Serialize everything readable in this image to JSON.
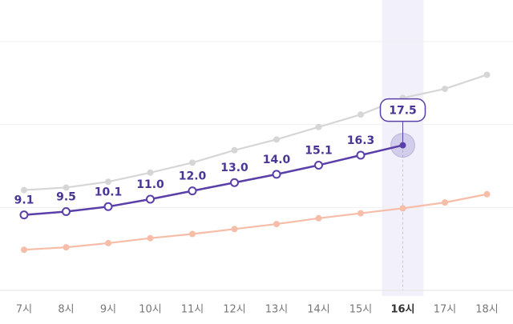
{
  "chart_data": {
    "type": "line",
    "categories": [
      "7시",
      "8시",
      "9시",
      "10시",
      "11시",
      "12시",
      "13시",
      "14시",
      "15시",
      "16시",
      "17시",
      "18시"
    ],
    "series": [
      {
        "color": "#5b3fa8",
        "marker": "hollow",
        "values": [
          9.1,
          9.5,
          10.1,
          11.0,
          12.0,
          13.0,
          14.0,
          15.1,
          16.3,
          17.5,
          null,
          null
        ],
        "value_labels": [
          "9.1",
          "9.5",
          "10.1",
          "11.0",
          "12.0",
          "13.0",
          "14.0",
          "15.1",
          "16.3",
          "17.5",
          null,
          null
        ]
      },
      {
        "color": "#d6d6d6",
        "marker": "filled",
        "values": [
          12.1,
          12.4,
          13.1,
          14.2,
          15.4,
          16.9,
          18.2,
          19.7,
          21.2,
          23.2,
          24.3,
          26.0
        ]
      },
      {
        "color": "#f6bda8",
        "marker": "filled",
        "values": [
          4.9,
          5.2,
          5.7,
          6.3,
          6.8,
          7.4,
          8.0,
          8.7,
          9.3,
          9.9,
          10.6,
          11.6
        ]
      }
    ],
    "ylim": [
      0,
      30
    ],
    "yticks": [
      0,
      10,
      20,
      30
    ],
    "grid": true,
    "selected_index": 9
  }
}
